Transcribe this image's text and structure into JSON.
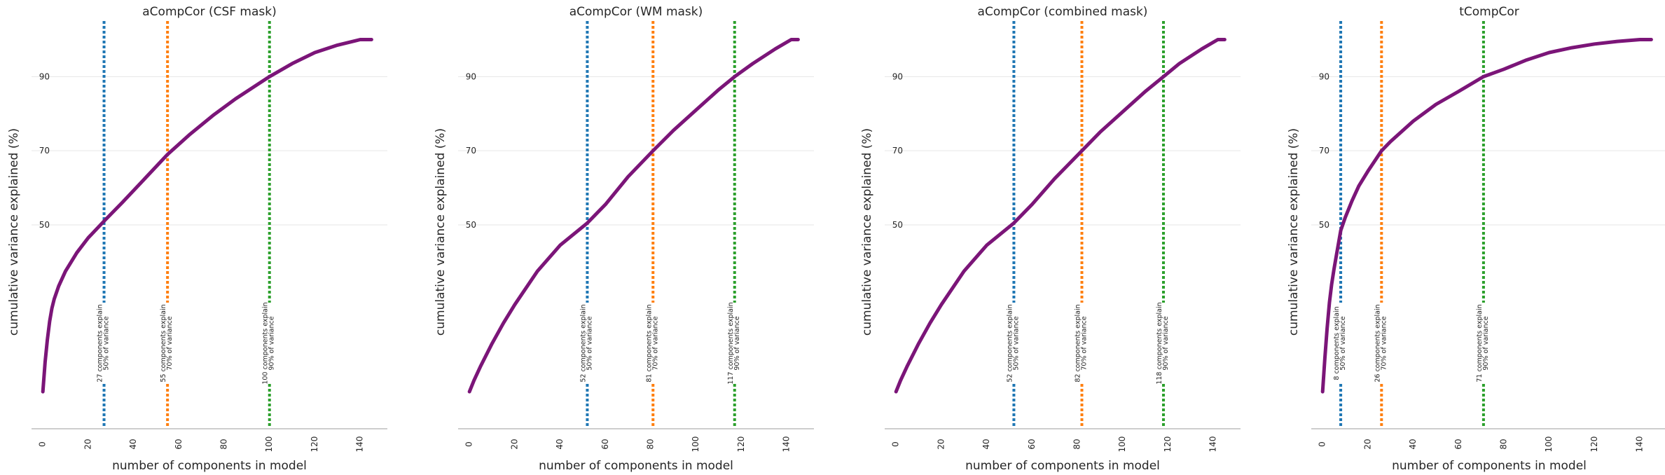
{
  "figure": {
    "xlabel": "number of components in model",
    "ylabel": "cumulative variance explained (%)"
  },
  "chart_data": [
    {
      "type": "line",
      "title": "aCompCor (CSF mask)",
      "xlabel": "number of components in model",
      "ylabel": "cumulative variance explained (%)",
      "xlim": [
        -5,
        152
      ],
      "ylim": [
        -5,
        105
      ],
      "xticks": [
        0,
        20,
        40,
        60,
        80,
        100,
        120,
        140
      ],
      "yticks": [
        50,
        70,
        90
      ],
      "grid": "y",
      "series": [
        {
          "color": "#7b1578",
          "x": [
            0,
            1,
            2,
            3,
            4,
            5,
            7,
            10,
            15,
            20,
            27,
            35,
            45,
            55,
            65,
            75,
            85,
            100,
            110,
            120,
            130,
            140,
            145
          ],
          "y": [
            5,
            13,
            19,
            24,
            27.5,
            30,
            33.5,
            37.5,
            42.5,
            46.5,
            51,
            56,
            62.5,
            69,
            74.5,
            79.5,
            84,
            90,
            93.5,
            96.5,
            98.5,
            100,
            100
          ]
        }
      ],
      "thresholds": [
        {
          "x": 27,
          "color": "#1f77b4",
          "label": [
            "27 components explain",
            "50% of variance"
          ]
        },
        {
          "x": 55,
          "color": "#ff7f0e",
          "label": [
            "55 components explain",
            "70% of variance"
          ]
        },
        {
          "x": 100,
          "color": "#2ca02c",
          "label": [
            "100 components explain",
            "90% of variance"
          ]
        }
      ]
    },
    {
      "type": "line",
      "title": "aCompCor (WM mask)",
      "xlabel": "number of components in model",
      "ylabel": "cumulative variance explained (%)",
      "xlim": [
        -5,
        152
      ],
      "ylim": [
        -5,
        105
      ],
      "xticks": [
        0,
        20,
        40,
        60,
        80,
        100,
        120,
        140
      ],
      "yticks": [
        50,
        70,
        90
      ],
      "grid": "y",
      "series": [
        {
          "color": "#7b1578",
          "x": [
            0,
            2,
            5,
            10,
            15,
            20,
            30,
            40,
            52,
            60,
            70,
            81,
            90,
            100,
            110,
            117,
            125,
            135,
            142,
            145
          ],
          "y": [
            5,
            8,
            12,
            18,
            23.5,
            28.5,
            37.5,
            44.5,
            50.5,
            55.5,
            63,
            70,
            75.5,
            81,
            86.5,
            90,
            93.5,
            97.5,
            100,
            100
          ]
        }
      ],
      "thresholds": [
        {
          "x": 52,
          "color": "#1f77b4",
          "label": [
            "52 components explain",
            "50% of variance"
          ]
        },
        {
          "x": 81,
          "color": "#ff7f0e",
          "label": [
            "81 components explain",
            "70% of variance"
          ]
        },
        {
          "x": 117,
          "color": "#2ca02c",
          "label": [
            "117 components explain",
            "90% of variance"
          ]
        }
      ]
    },
    {
      "type": "line",
      "title": "aCompCor (combined mask)",
      "xlabel": "number of components in model",
      "ylabel": "cumulative variance explained (%)",
      "xlim": [
        -5,
        152
      ],
      "ylim": [
        -5,
        105
      ],
      "xticks": [
        0,
        20,
        40,
        60,
        80,
        100,
        120,
        140
      ],
      "yticks": [
        50,
        70,
        90
      ],
      "grid": "y",
      "series": [
        {
          "color": "#7b1578",
          "x": [
            0,
            2,
            5,
            10,
            15,
            20,
            30,
            40,
            52,
            60,
            70,
            82,
            90,
            100,
            110,
            118,
            125,
            135,
            142,
            145
          ],
          "y": [
            5,
            8,
            12,
            18,
            23.5,
            28.5,
            37.5,
            44.5,
            50.5,
            55.5,
            62.5,
            70,
            75,
            80.5,
            86,
            90,
            93.5,
            97.5,
            100,
            100
          ]
        }
      ],
      "thresholds": [
        {
          "x": 52,
          "color": "#1f77b4",
          "label": [
            "52 components explain",
            "50% of variance"
          ]
        },
        {
          "x": 82,
          "color": "#ff7f0e",
          "label": [
            "82 components explain",
            "70% of variance"
          ]
        },
        {
          "x": 118,
          "color": "#2ca02c",
          "label": [
            "118 components explain",
            "90% of variance"
          ]
        }
      ]
    },
    {
      "type": "line",
      "title": "tCompCor",
      "xlabel": "number of components in model",
      "ylabel": "cumulative variance explained (%)",
      "xlim": [
        -5,
        152
      ],
      "ylim": [
        -5,
        105
      ],
      "xticks": [
        0,
        20,
        40,
        60,
        80,
        100,
        120,
        140
      ],
      "yticks": [
        50,
        70,
        90
      ],
      "grid": "y",
      "series": [
        {
          "color": "#7b1578",
          "x": [
            0,
            1,
            2,
            3,
            4,
            5,
            6,
            8,
            10,
            13,
            16,
            20,
            26,
            30,
            40,
            50,
            60,
            71,
            80,
            90,
            100,
            110,
            120,
            130,
            140,
            145
          ],
          "y": [
            5,
            14,
            22,
            29,
            34,
            38,
            41.5,
            48.5,
            52,
            56.5,
            60.5,
            64.5,
            70,
            72.5,
            78,
            82.5,
            86,
            90,
            92,
            94.5,
            96.5,
            97.8,
            98.8,
            99.5,
            100,
            100
          ]
        }
      ],
      "thresholds": [
        {
          "x": 8,
          "color": "#1f77b4",
          "label": [
            "8 components explain",
            "50% of variance"
          ]
        },
        {
          "x": 26,
          "color": "#ff7f0e",
          "label": [
            "26 components explain",
            "70% of variance"
          ]
        },
        {
          "x": 71,
          "color": "#2ca02c",
          "label": [
            "71 components explain",
            "90% of variance"
          ]
        }
      ]
    }
  ]
}
